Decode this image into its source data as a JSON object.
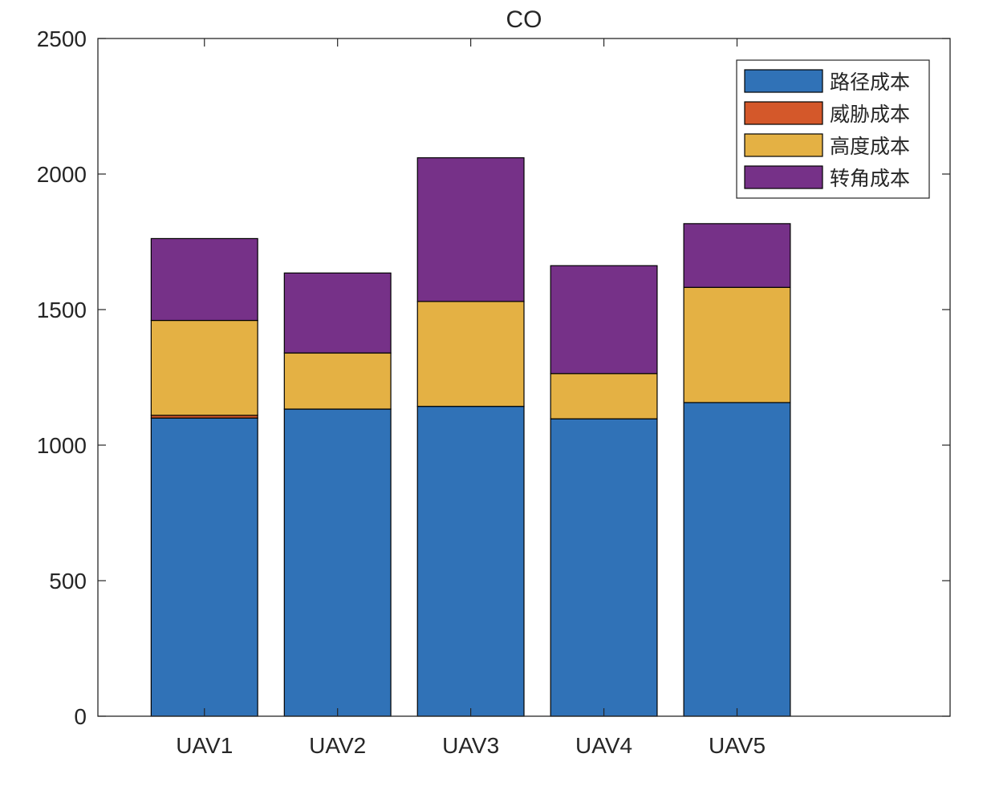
{
  "chart_data": {
    "type": "bar",
    "stacked": true,
    "title": "CO",
    "xlabel": "",
    "ylabel": "",
    "categories": [
      "UAV1",
      "UAV2",
      "UAV3",
      "UAV4",
      "UAV5"
    ],
    "ylim": [
      0,
      2500
    ],
    "yticks": [
      0,
      500,
      1000,
      1500,
      2000,
      2500
    ],
    "y_tick_labels": [
      "0",
      "500",
      "1000",
      "1500",
      "2000",
      "2500"
    ],
    "xlim": [
      0.2,
      6.6
    ],
    "grid": false,
    "legend_position": "top-right",
    "series": [
      {
        "name": "路径成本",
        "color": "#3072b7",
        "values": [
          1100,
          1133,
          1143,
          1097,
          1157
        ]
      },
      {
        "name": "威胁成本",
        "color": "#d4582a",
        "values": [
          10,
          0,
          0,
          0,
          0
        ]
      },
      {
        "name": "高度成本",
        "color": "#e4b144",
        "values": [
          350,
          207,
          387,
          167,
          425
        ]
      },
      {
        "name": "转角成本",
        "color": "#763188",
        "values": [
          302,
          295,
          530,
          398,
          235
        ]
      }
    ]
  }
}
